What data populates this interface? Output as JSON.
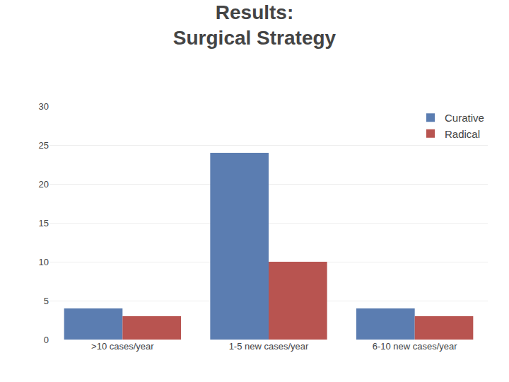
{
  "chart_data": {
    "type": "bar",
    "title": "Results:",
    "subtitle": "Surgical Strategy",
    "categories": [
      ">10 cases/year",
      "1-5 new cases/year",
      "6-10 new cases/year"
    ],
    "series": [
      {
        "name": "Curative",
        "values": [
          4,
          24,
          4
        ],
        "color": "#5B7DB1"
      },
      {
        "name": "Radical",
        "values": [
          3,
          10,
          3
        ],
        "color": "#B85450"
      }
    ],
    "ylim": [
      0,
      30
    ],
    "yticks": [
      0,
      5,
      10,
      15,
      20,
      25,
      30
    ],
    "grid": true,
    "legend": "upper right"
  }
}
